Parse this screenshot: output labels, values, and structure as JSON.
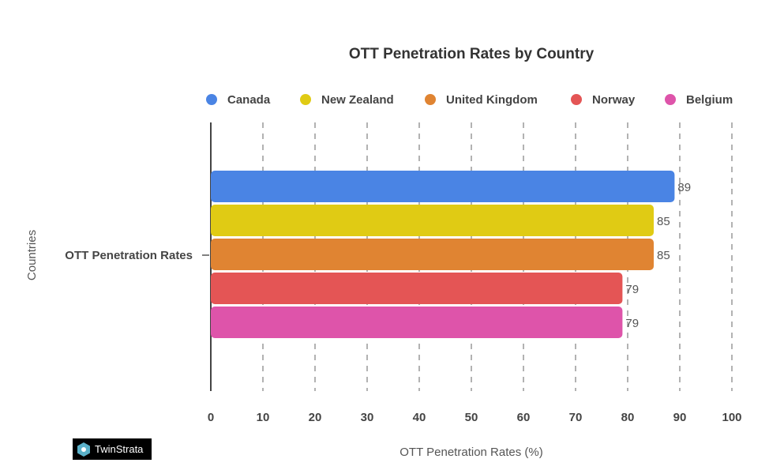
{
  "chart_data": {
    "type": "bar",
    "orientation": "horizontal",
    "title": "OTT Penetration Rates by Country",
    "xlabel": "OTT Penetration Rates (%)",
    "ylabel": "Countries",
    "categories": [
      "OTT Penetration Rates"
    ],
    "series": [
      {
        "name": "Canada",
        "values": [
          89
        ],
        "color": "#4a84e4"
      },
      {
        "name": "New Zealand",
        "values": [
          85
        ],
        "color": "#e0cb14"
      },
      {
        "name": "United Kingdom",
        "values": [
          85
        ],
        "color": "#e08432"
      },
      {
        "name": "Norway",
        "values": [
          79
        ],
        "color": "#e45555"
      },
      {
        "name": "Belgium",
        "values": [
          79
        ],
        "color": "#de54aa"
      }
    ],
    "xlim": [
      0,
      100
    ],
    "xticks": [
      "0",
      "10",
      "20",
      "30",
      "40",
      "50",
      "60",
      "70",
      "80",
      "90",
      "100"
    ],
    "grid": true,
    "legend": "top"
  },
  "logo": {
    "text": "TwinStrata"
  }
}
